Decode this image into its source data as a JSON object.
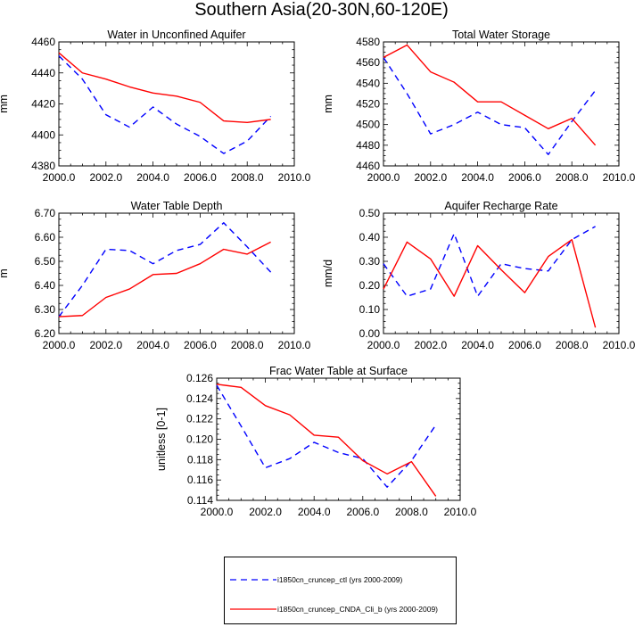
{
  "title": "Southern Asia(20-30N,60-120E)",
  "colors": {
    "ctl": "#0000ff",
    "cnda": "#ff0000"
  },
  "legend": {
    "items": [
      {
        "label": "i1850cn_cruncep_ctl (yrs 2000-2009)",
        "color": "#0000ff",
        "dash": "dashed"
      },
      {
        "label": "i1850cn_cruncep_CNDA_Cli_b (yrs 2000-2009)",
        "color": "#ff0000",
        "dash": "solid"
      }
    ]
  },
  "chart_data": [
    {
      "type": "line",
      "title": "Water in Unconfined Aquifer",
      "ylabel": "mm",
      "xlim": [
        2000,
        2010
      ],
      "ylim": [
        4380,
        4460
      ],
      "xticks": [
        "2000.0",
        "2002.0",
        "2004.0",
        "2006.0",
        "2008.0",
        "2010.0"
      ],
      "yticks": [
        "4380",
        "4400",
        "4420",
        "4440",
        "4460"
      ],
      "x": [
        2000,
        2001,
        2002,
        2003,
        2004,
        2005,
        2006,
        2007,
        2008,
        2009
      ],
      "series": [
        {
          "values": [
            4451,
            4436,
            4413,
            4405,
            4418,
            4407,
            4399,
            4388,
            4396,
            4412
          ]
        },
        {
          "values": [
            4453,
            4440,
            4436,
            4431,
            4427,
            4425,
            4421,
            4409,
            4408,
            4410
          ]
        }
      ]
    },
    {
      "type": "line",
      "title": "Total Water Storage",
      "ylabel": "mm",
      "xlim": [
        2000,
        2010
      ],
      "ylim": [
        4460,
        4580
      ],
      "xticks": [
        "2000.0",
        "2002.0",
        "2004.0",
        "2006.0",
        "2008.0",
        "2010.0"
      ],
      "yticks": [
        "4460",
        "4480",
        "4500",
        "4520",
        "4540",
        "4560",
        "4580"
      ],
      "x": [
        2000,
        2001,
        2002,
        2003,
        2004,
        2005,
        2006,
        2007,
        2008,
        2009
      ],
      "series": [
        {
          "values": [
            4565,
            4530,
            4491,
            4500,
            4512,
            4500,
            4497,
            4471,
            4503,
            4533
          ]
        },
        {
          "values": [
            4565,
            4577,
            4551,
            4541,
            4522,
            4522,
            4509,
            4496,
            4506,
            4480
          ]
        }
      ]
    },
    {
      "type": "line",
      "title": "Water Table Depth",
      "ylabel": "m",
      "xlim": [
        2000,
        2010
      ],
      "ylim": [
        6.2,
        6.7
      ],
      "xticks": [
        "2000.0",
        "2002.0",
        "2004.0",
        "2006.0",
        "2008.0",
        "2010.0"
      ],
      "yticks": [
        "6.20",
        "6.30",
        "6.40",
        "6.50",
        "6.60",
        "6.70"
      ],
      "x": [
        2000,
        2001,
        2002,
        2003,
        2004,
        2005,
        2006,
        2007,
        2008,
        2009
      ],
      "series": [
        {
          "values": [
            6.27,
            6.4,
            6.55,
            6.545,
            6.49,
            6.545,
            6.57,
            6.66,
            6.56,
            6.455
          ]
        },
        {
          "values": [
            6.27,
            6.275,
            6.35,
            6.385,
            6.445,
            6.45,
            6.49,
            6.55,
            6.53,
            6.58
          ]
        }
      ]
    },
    {
      "type": "line",
      "title": "Aquifer Recharge Rate",
      "ylabel": "mm/d",
      "xlim": [
        2000,
        2010
      ],
      "ylim": [
        0,
        0.5
      ],
      "xticks": [
        "2000.0",
        "2002.0",
        "2004.0",
        "2006.0",
        "2008.0",
        "2010.0"
      ],
      "yticks": [
        "0.00",
        "0.10",
        "0.20",
        "0.30",
        "0.40",
        "0.50"
      ],
      "x": [
        2000,
        2001,
        2002,
        2003,
        2004,
        2005,
        2006,
        2007,
        2008,
        2009
      ],
      "series": [
        {
          "values": [
            0.29,
            0.155,
            0.185,
            0.415,
            0.155,
            0.29,
            0.27,
            0.26,
            0.39,
            0.445
          ]
        },
        {
          "values": [
            0.185,
            0.38,
            0.31,
            0.155,
            0.365,
            0.265,
            0.17,
            0.32,
            0.39,
            0.025
          ]
        }
      ]
    },
    {
      "type": "line",
      "title": "Frac Water Table at Surface",
      "ylabel": "unitless [0-1]",
      "xlim": [
        2000,
        2010
      ],
      "ylim": [
        0.114,
        0.126
      ],
      "xticks": [
        "2000.0",
        "2002.0",
        "2004.0",
        "2006.0",
        "2008.0",
        "2010.0"
      ],
      "yticks": [
        "0.114",
        "0.116",
        "0.118",
        "0.120",
        "0.122",
        "0.124",
        "0.126"
      ],
      "x": [
        2000,
        2001,
        2002,
        2003,
        2004,
        2005,
        2006,
        2007,
        2008,
        2009
      ],
      "series": [
        {
          "values": [
            0.1253,
            0.1213,
            0.1172,
            0.1181,
            0.1197,
            0.1187,
            0.1181,
            0.1153,
            0.1179,
            0.1214
          ]
        },
        {
          "values": [
            0.1254,
            0.1251,
            0.1233,
            0.1224,
            0.1204,
            0.1202,
            0.1179,
            0.1166,
            0.1178,
            0.1144
          ]
        }
      ]
    }
  ]
}
